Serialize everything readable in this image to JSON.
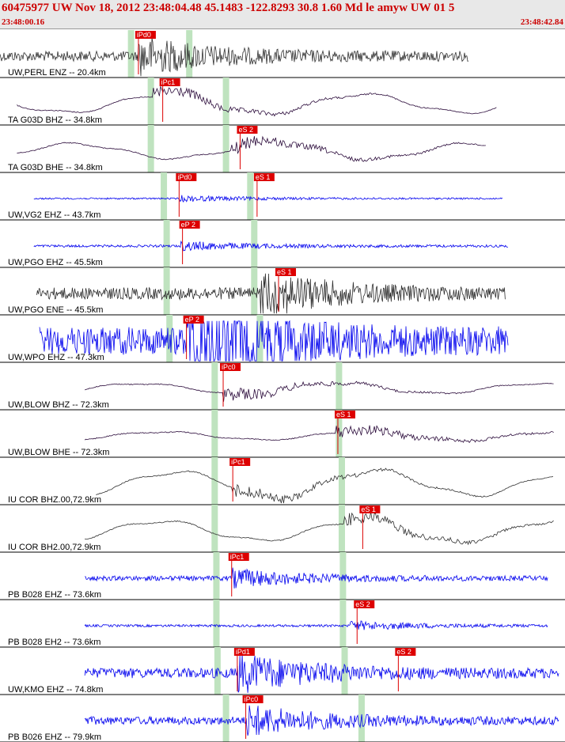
{
  "header": {
    "title": "60475977 UW Nov 18, 2012 23:48:04.48    45.1483 -122.8293 30.8 1.60 Md le amyw UW 01   5",
    "time_start": "23:48:00.16",
    "time_end": "23:48:42.84"
  },
  "colors": {
    "trace_blue": "#0000ee",
    "trace_black": "#303030",
    "trace_purple": "#2a0a3a",
    "pick_red": "#dd0000",
    "highlight_green": "#bfe3bf"
  },
  "traces": [
    {
      "label": "UW,PERL ENZ -- 20.4km",
      "color": "trace_black",
      "style": "noise",
      "start": 0.0,
      "end": 0.83,
      "amp": 0.25,
      "event": 0.245,
      "pick": {
        "text": "iPd0",
        "pos": 0.245
      },
      "green": [
        0.232,
        0.335
      ]
    },
    {
      "label": "TA G03D BHZ -- 34.8km",
      "color": "trace_purple",
      "style": "wave",
      "start": 0.03,
      "end": 0.88,
      "amp": 0.55,
      "event": 0.27,
      "pick": {
        "text": "iPc1",
        "pos": 0.288
      },
      "green": [
        0.267,
        0.4
      ]
    },
    {
      "label": "TA G03D BHE -- 34.8km",
      "color": "trace_purple",
      "style": "wave",
      "start": 0.03,
      "end": 0.86,
      "amp": 0.45,
      "event": 0.41,
      "pick": {
        "text": "eS 2",
        "pos": 0.425
      },
      "green": [
        0.267,
        0.4
      ]
    },
    {
      "label": "UW,VG2 EHZ -- 43.7km",
      "color": "trace_blue",
      "style": "noise",
      "start": 0.06,
      "end": 0.89,
      "amp": 0.04,
      "event": 0.317,
      "pick": {
        "text": "iPd0",
        "pos": 0.317
      },
      "pick2": {
        "text": "eS 1",
        "pos": 0.455
      },
      "green": [
        0.29,
        0.443
      ]
    },
    {
      "label": "UW,PGO EHZ -- 45.5km",
      "color": "trace_blue",
      "style": "noise",
      "start": 0.06,
      "end": 0.9,
      "amp": 0.06,
      "event": 0.32,
      "pick": {
        "text": "eP 2",
        "pos": 0.323
      },
      "green": [
        0.295,
        0.45
      ]
    },
    {
      "label": "UW,PGO ENE -- 45.5km",
      "color": "trace_black",
      "style": "noise",
      "start": 0.065,
      "end": 0.895,
      "amp": 0.3,
      "event": 0.46,
      "pick": {
        "text": "eS 1",
        "pos": 0.493
      },
      "green": [
        0.295,
        0.45
      ]
    },
    {
      "label": "UW,WPO EHZ -- 47.3km",
      "color": "trace_blue",
      "style": "noise",
      "start": 0.07,
      "end": 0.9,
      "amp": 0.7,
      "event": 0.33,
      "pick": {
        "text": "eP 2",
        "pos": 0.33
      },
      "green": [
        0.3,
        0.46
      ]
    },
    {
      "label": "UW,BLOW BHZ -- 72.3km",
      "color": "trace_purple",
      "style": "wave",
      "start": 0.15,
      "end": 0.98,
      "amp": 0.3,
      "event": 0.395,
      "pick": {
        "text": "iPc0",
        "pos": 0.395
      },
      "green": [
        0.38,
        0.6
      ]
    },
    {
      "label": "UW,BLOW BHE -- 72.3km",
      "color": "trace_purple",
      "style": "wave",
      "start": 0.15,
      "end": 0.98,
      "amp": 0.25,
      "event": 0.595,
      "pick": {
        "text": "eS 1",
        "pos": 0.598
      },
      "green": [
        0.38,
        0.6
      ]
    },
    {
      "label": "IU COR BHZ.00,72.9km",
      "color": "trace_black",
      "style": "wave",
      "start": 0.17,
      "end": 0.98,
      "amp": 0.7,
      "event": 0.41,
      "pick": {
        "text": "iPc1",
        "pos": 0.412
      },
      "green": [
        0.38,
        0.605
      ]
    },
    {
      "label": "IU COR BH2.00,72.9km",
      "color": "trace_black",
      "style": "wave",
      "start": 0.15,
      "end": 0.98,
      "amp": 0.6,
      "event": 0.61,
      "pick": {
        "text": "eS 1",
        "pos": 0.642
      },
      "green": [
        0.38,
        0.605
      ]
    },
    {
      "label": "PB B028 EHZ -- 73.6km",
      "color": "trace_blue",
      "style": "noise",
      "start": 0.15,
      "end": 0.97,
      "amp": 0.12,
      "event": 0.41,
      "pick": {
        "text": "iPc1",
        "pos": 0.41
      },
      "green": [
        0.383,
        0.607
      ]
    },
    {
      "label": "PB B028 EH2 -- 73.6km",
      "color": "trace_blue",
      "style": "noise",
      "start": 0.15,
      "end": 0.97,
      "amp": 0.06,
      "event": 0.62,
      "pick": {
        "text": "eS 2",
        "pos": 0.632
      },
      "green": [
        0.383,
        0.607
      ]
    },
    {
      "label": "UW,KMO EHZ -- 74.8km",
      "color": "trace_blue",
      "style": "noise",
      "start": 0.15,
      "end": 0.99,
      "amp": 0.25,
      "event": 0.42,
      "pick": {
        "text": "iPd1",
        "pos": 0.42
      },
      "pick2": {
        "text": "eS 2",
        "pos": 0.705
      },
      "green": [
        0.385,
        0.61
      ]
    },
    {
      "label": "PB B026 EHZ -- 79.9km",
      "color": "trace_blue",
      "style": "noise",
      "start": 0.15,
      "end": 0.99,
      "amp": 0.2,
      "event": 0.435,
      "pick": {
        "text": "iPc0",
        "pos": 0.435
      },
      "green": [
        0.4,
        0.64
      ]
    }
  ]
}
